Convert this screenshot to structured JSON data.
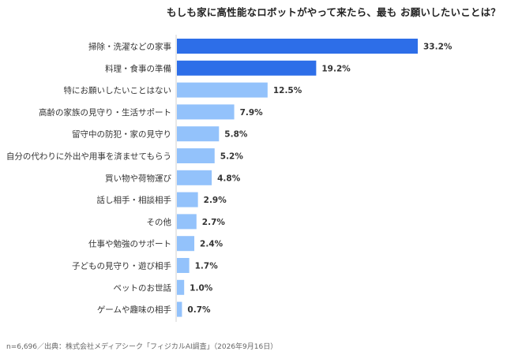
{
  "title": "もしも家に高性能なロボットがやって来たら、最も お願いしたいことは？",
  "footer": "n=6,696／出典：株式会社メディアシーク「フィジカルAI調査」（2026年9月16日）",
  "colors": {
    "highlight": "#2d6ee8",
    "normal": "#93c2fb",
    "axis": "#d0d0d0"
  },
  "chart_data": {
    "type": "bar",
    "orientation": "horizontal",
    "categories": [
      "掃除・洗濯などの家事",
      "料理・食事の準備",
      "特にお願いしたいことはない",
      "高齢の家族の見守り・生活サポート",
      "留守中の防犯・家の見守り",
      "自分の代わりに外出や用事を済ませてもらう",
      "買い物や荷物運び",
      "話し相手・相談相手",
      "その他",
      "仕事や勉強のサポート",
      "子どもの見守り・遊び相手",
      "ペットのお世話",
      "ゲームや趣味の相手"
    ],
    "values": [
      33.2,
      19.2,
      12.5,
      7.9,
      5.8,
      5.2,
      4.8,
      2.9,
      2.7,
      2.4,
      1.7,
      1.0,
      0.7
    ],
    "value_labels": [
      "33.2%",
      "19.2%",
      "12.5%",
      "7.9%",
      "5.8%",
      "5.2%",
      "4.8%",
      "2.9%",
      "2.7%",
      "2.4%",
      "1.7%",
      "1.0%",
      "0.7%"
    ],
    "highlighted": [
      true,
      true,
      false,
      false,
      false,
      false,
      false,
      false,
      false,
      false,
      false,
      false,
      false
    ],
    "xlim": [
      0,
      33.2
    ],
    "grid": false,
    "legend": "none"
  }
}
